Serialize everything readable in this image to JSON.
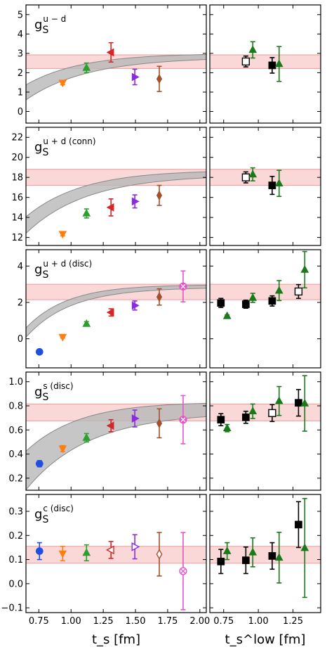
{
  "chart_data": {
    "type": "scatter",
    "xlabel_left": "t_s [fm]",
    "xlabel_right": "t_s^low [fm]",
    "x_left_ticks": [
      "0.75",
      "1.00",
      "1.25",
      "1.50",
      "1.75",
      "2.00"
    ],
    "x_right_ticks": [
      "0.75",
      "1.00",
      "1.25"
    ],
    "x_left_range": [
      0.65,
      2.05
    ],
    "x_right_range": [
      0.65,
      1.45
    ],
    "colors": {
      "blue": "#1f4fe0",
      "orange": "#ff7f0e",
      "green": "#2ca02c",
      "red": "#d62728",
      "purple": "#8a2be2",
      "brown": "#a0522d",
      "pink": "#e754c9",
      "dgreen": "#1a7a1a",
      "black": "#000000",
      "band": "#f8c8c8",
      "bandLine": "#ef9a9a",
      "fitFill": "#b8b8b8",
      "fitLine": "#888888"
    },
    "panels": [
      {
        "id": "u-d",
        "label_base": "g",
        "label_sub": "S",
        "label_sup": "u − d",
        "ylim": [
          -0.6,
          5.5
        ],
        "yticks": [
          "0",
          "1",
          "2",
          "3",
          "4",
          "5"
        ],
        "band": [
          2.22,
          2.92
        ],
        "fit": {
          "A": 2.9,
          "B": 8.0,
          "C": 2.2,
          "w0": 0.27,
          "w1": 0.08
        },
        "left": [
          {
            "x": 0.935,
            "y": 1.48,
            "e": 0.1,
            "m": "v",
            "c": "orange",
            "open": false
          },
          {
            "x": 1.12,
            "y": 2.25,
            "e": 0.25,
            "m": "^",
            "c": "green",
            "open": false
          },
          {
            "x": 1.31,
            "y": 3.05,
            "e": 0.5,
            "m": "<",
            "c": "red",
            "open": false
          },
          {
            "x": 1.495,
            "y": 1.78,
            "e": 0.4,
            "m": ">",
            "c": "purple",
            "open": false
          },
          {
            "x": 1.685,
            "y": 1.68,
            "e": 0.65,
            "m": "d",
            "c": "brown",
            "open": false
          }
        ],
        "right": [
          {
            "x": 0.91,
            "y": 2.58,
            "e": 0.28,
            "m": "s",
            "c": "black",
            "open": true
          },
          {
            "x": 0.96,
            "y": 3.18,
            "e": 0.42,
            "m": "^",
            "c": "dgreen",
            "open": false
          },
          {
            "x": 1.1,
            "y": 2.38,
            "e": 0.4,
            "m": "s",
            "c": "black",
            "open": false
          },
          {
            "x": 1.15,
            "y": 2.45,
            "e": 0.9,
            "m": "^",
            "c": "dgreen",
            "open": false
          }
        ]
      },
      {
        "id": "u+d-conn",
        "label_base": "g",
        "label_sub": "S",
        "label_sup": "u + d (conn)",
        "ylim": [
          11.2,
          23.0
        ],
        "yticks": [
          "12",
          "14",
          "16",
          "18",
          "20",
          "22"
        ],
        "band": [
          17.2,
          18.8
        ],
        "fit": {
          "A": 18.5,
          "B": 22.0,
          "C": 2.2,
          "w0": 0.55,
          "w1": 0.2
        },
        "left": [
          {
            "x": 0.935,
            "y": 12.35,
            "e": 0.2,
            "m": "v",
            "c": "orange",
            "open": false
          },
          {
            "x": 1.12,
            "y": 14.4,
            "e": 0.45,
            "m": "^",
            "c": "green",
            "open": false
          },
          {
            "x": 1.31,
            "y": 15.0,
            "e": 0.85,
            "m": "<",
            "c": "red",
            "open": false
          },
          {
            "x": 1.495,
            "y": 15.6,
            "e": 0.65,
            "m": ">",
            "c": "purple",
            "open": false
          },
          {
            "x": 1.685,
            "y": 16.2,
            "e": 1.0,
            "m": "d",
            "c": "brown",
            "open": false
          }
        ],
        "right": [
          {
            "x": 0.91,
            "y": 18.0,
            "e": 0.55,
            "m": "s",
            "c": "black",
            "open": true
          },
          {
            "x": 0.96,
            "y": 18.3,
            "e": 0.65,
            "m": "^",
            "c": "dgreen",
            "open": false
          },
          {
            "x": 1.1,
            "y": 17.2,
            "e": 0.9,
            "m": "s",
            "c": "black",
            "open": false
          },
          {
            "x": 1.15,
            "y": 17.4,
            "e": 1.3,
            "m": "^",
            "c": "dgreen",
            "open": false
          }
        ]
      },
      {
        "id": "u+d-disc",
        "label_base": "g",
        "label_sub": "S",
        "label_sup": "u + d (disc)",
        "ylim": [
          -1.6,
          4.9
        ],
        "yticks": [
          "0",
          "2",
          "4"
        ],
        "band": [
          2.15,
          3.0
        ],
        "fit": {
          "A": 2.9,
          "B": 18.0,
          "C": 3.0,
          "w0": 0.18,
          "w1": 0.05
        },
        "left": [
          {
            "x": 0.755,
            "y": -0.72,
            "e": 0.05,
            "m": "o",
            "c": "blue",
            "open": false
          },
          {
            "x": 0.935,
            "y": 0.1,
            "e": 0.06,
            "m": "v",
            "c": "orange",
            "open": false
          },
          {
            "x": 1.12,
            "y": 0.82,
            "e": 0.12,
            "m": "^",
            "c": "green",
            "open": false
          },
          {
            "x": 1.31,
            "y": 1.45,
            "e": 0.2,
            "m": "<",
            "c": "red",
            "open": false
          },
          {
            "x": 1.495,
            "y": 1.83,
            "e": 0.25,
            "m": ">",
            "c": "purple",
            "open": false
          },
          {
            "x": 1.685,
            "y": 2.3,
            "e": 0.45,
            "m": "d",
            "c": "brown",
            "open": false
          },
          {
            "x": 1.87,
            "y": 2.88,
            "e": 0.85,
            "m": "X",
            "c": "pink",
            "open": false
          }
        ],
        "right": [
          {
            "x": 0.73,
            "y": 1.97,
            "e": 0.25,
            "m": "s",
            "c": "black",
            "open": false
          },
          {
            "x": 0.775,
            "y": 1.25,
            "e": 0.06,
            "m": "^",
            "c": "dgreen",
            "open": false
          },
          {
            "x": 0.91,
            "y": 1.9,
            "e": 0.22,
            "m": "s",
            "c": "black",
            "open": false
          },
          {
            "x": 0.96,
            "y": 2.25,
            "e": 0.25,
            "m": "^",
            "c": "dgreen",
            "open": false
          },
          {
            "x": 1.1,
            "y": 2.08,
            "e": 0.28,
            "m": "s",
            "c": "black",
            "open": false
          },
          {
            "x": 1.15,
            "y": 2.65,
            "e": 0.55,
            "m": "^",
            "c": "dgreen",
            "open": false
          },
          {
            "x": 1.29,
            "y": 2.6,
            "e": 0.38,
            "m": "s",
            "c": "black",
            "open": true
          },
          {
            "x": 1.335,
            "y": 3.8,
            "e": 1.0,
            "m": "^",
            "c": "dgreen",
            "open": false
          }
        ]
      },
      {
        "id": "s-disc",
        "label_base": "g",
        "label_sub": "S",
        "label_sup": "s (disc)",
        "ylim": [
          0.1,
          1.08
        ],
        "yticks": [
          "0.2",
          "0.4",
          "0.6",
          "0.8",
          "1.0"
        ],
        "band": [
          0.675,
          0.815
        ],
        "fit": {
          "A": 0.79,
          "B": 2.2,
          "C": 2.2,
          "w0": 0.11,
          "w1": 0.035
        },
        "left": [
          {
            "x": 0.755,
            "y": 0.32,
            "e": 0.025,
            "m": "o",
            "c": "blue",
            "open": false
          },
          {
            "x": 0.935,
            "y": 0.445,
            "e": 0.025,
            "m": "v",
            "c": "orange",
            "open": false
          },
          {
            "x": 1.12,
            "y": 0.535,
            "e": 0.035,
            "m": "^",
            "c": "green",
            "open": false
          },
          {
            "x": 1.31,
            "y": 0.635,
            "e": 0.05,
            "m": "<",
            "c": "red",
            "open": false
          },
          {
            "x": 1.495,
            "y": 0.695,
            "e": 0.07,
            "m": ">",
            "c": "purple",
            "open": false
          },
          {
            "x": 1.685,
            "y": 0.655,
            "e": 0.12,
            "m": "d",
            "c": "brown",
            "open": false
          },
          {
            "x": 1.87,
            "y": 0.685,
            "e": 0.2,
            "m": "X",
            "c": "pink",
            "open": false
          }
        ],
        "right": [
          {
            "x": 0.73,
            "y": 0.685,
            "e": 0.05,
            "m": "s",
            "c": "black",
            "open": false
          },
          {
            "x": 0.775,
            "y": 0.615,
            "e": 0.03,
            "m": "^",
            "c": "dgreen",
            "open": false
          },
          {
            "x": 0.91,
            "y": 0.705,
            "e": 0.05,
            "m": "s",
            "c": "black",
            "open": false
          },
          {
            "x": 0.96,
            "y": 0.755,
            "e": 0.06,
            "m": "^",
            "c": "dgreen",
            "open": false
          },
          {
            "x": 1.1,
            "y": 0.74,
            "e": 0.07,
            "m": "s",
            "c": "black",
            "open": true
          },
          {
            "x": 1.15,
            "y": 0.84,
            "e": 0.12,
            "m": "^",
            "c": "dgreen",
            "open": false
          },
          {
            "x": 1.29,
            "y": 0.825,
            "e": 0.11,
            "m": "s",
            "c": "black",
            "open": false
          },
          {
            "x": 1.335,
            "y": 0.82,
            "e": 0.23,
            "m": "^",
            "c": "dgreen",
            "open": false
          }
        ]
      },
      {
        "id": "c-disc",
        "label_base": "g",
        "label_sub": "S",
        "label_sup": "c (disc)",
        "ylim": [
          -0.12,
          0.37
        ],
        "yticks": [
          "−0.1",
          "0.0",
          "0.1",
          "0.2",
          "0.3"
        ],
        "band": [
          0.085,
          0.155
        ],
        "fit": null,
        "left": [
          {
            "x": 0.755,
            "y": 0.135,
            "e": 0.035,
            "m": "o",
            "c": "blue",
            "open": false
          },
          {
            "x": 0.935,
            "y": 0.125,
            "e": 0.03,
            "m": "v",
            "c": "orange",
            "open": false
          },
          {
            "x": 1.12,
            "y": 0.128,
            "e": 0.033,
            "m": "^",
            "c": "green",
            "open": false
          },
          {
            "x": 1.31,
            "y": 0.14,
            "e": 0.035,
            "m": "<",
            "c": "red",
            "open": true
          },
          {
            "x": 1.495,
            "y": 0.153,
            "e": 0.05,
            "m": ">",
            "c": "purple",
            "open": true
          },
          {
            "x": 1.685,
            "y": 0.122,
            "e": 0.09,
            "m": "d",
            "c": "brown",
            "open": true
          },
          {
            "x": 1.87,
            "y": 0.052,
            "e": 0.16,
            "m": "X",
            "c": "pink",
            "open": true
          }
        ],
        "right": [
          {
            "x": 0.73,
            "y": 0.092,
            "e": 0.05,
            "m": "s",
            "c": "black",
            "open": false
          },
          {
            "x": 0.775,
            "y": 0.135,
            "e": 0.035,
            "m": "^",
            "c": "dgreen",
            "open": false
          },
          {
            "x": 0.91,
            "y": 0.097,
            "e": 0.055,
            "m": "s",
            "c": "black",
            "open": false
          },
          {
            "x": 0.96,
            "y": 0.13,
            "e": 0.06,
            "m": "^",
            "c": "dgreen",
            "open": false
          },
          {
            "x": 1.1,
            "y": 0.115,
            "e": 0.055,
            "m": "s",
            "c": "black",
            "open": false
          },
          {
            "x": 1.15,
            "y": 0.108,
            "e": 0.105,
            "m": "^",
            "c": "dgreen",
            "open": false
          },
          {
            "x": 1.29,
            "y": 0.245,
            "e": 0.095,
            "m": "s",
            "c": "black",
            "open": false
          },
          {
            "x": 1.335,
            "y": 0.148,
            "e": 0.205,
            "m": "^",
            "c": "dgreen",
            "open": false
          }
        ]
      }
    ]
  }
}
